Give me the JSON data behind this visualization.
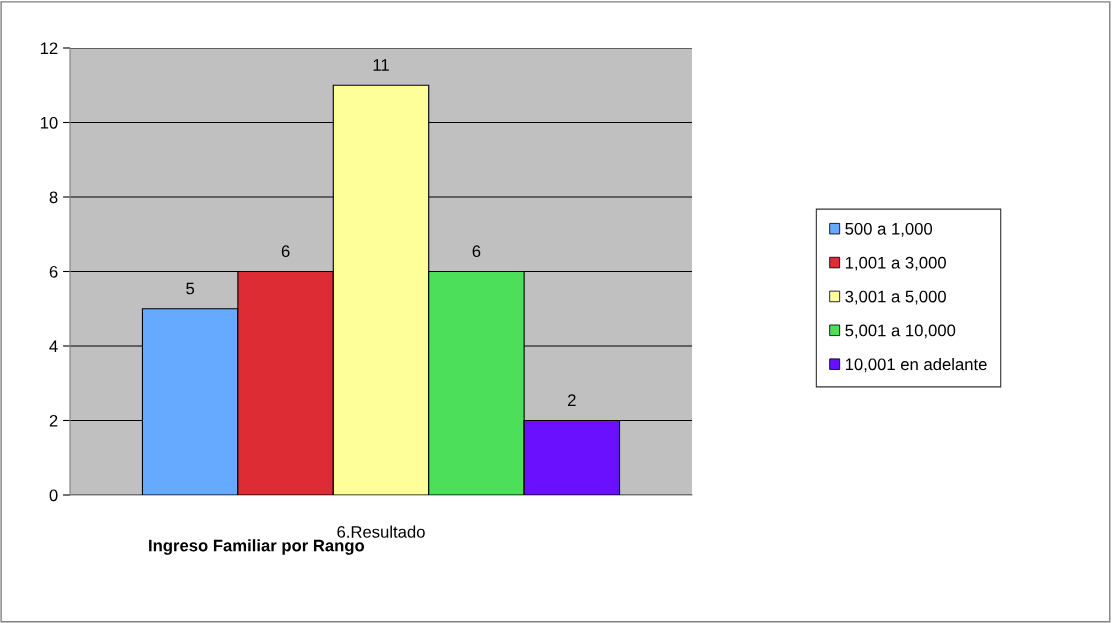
{
  "chart_data": {
    "type": "bar",
    "title": "Ingreso Familiar por Rango",
    "categories": [
      "6.Resultado"
    ],
    "series": [
      {
        "name": "500 a 1,000",
        "color": "#66aaff",
        "values": [
          5
        ]
      },
      {
        "name": "1,001 a 3,000",
        "color": "#dd2c33",
        "values": [
          6
        ]
      },
      {
        "name": "3,001 a 5,000",
        "color": "#ffff99",
        "values": [
          11
        ]
      },
      {
        "name": "5,001 a 10,000",
        "color": "#4ce05a",
        "values": [
          6
        ]
      },
      {
        "name": "10,001 en adelante",
        "color": "#6a10ff",
        "values": [
          2
        ]
      }
    ],
    "ylim": [
      0,
      12
    ],
    "yticks": [
      0,
      2,
      4,
      6,
      8,
      10,
      12
    ],
    "grid": "y",
    "legend": "right",
    "data_labels": true
  }
}
